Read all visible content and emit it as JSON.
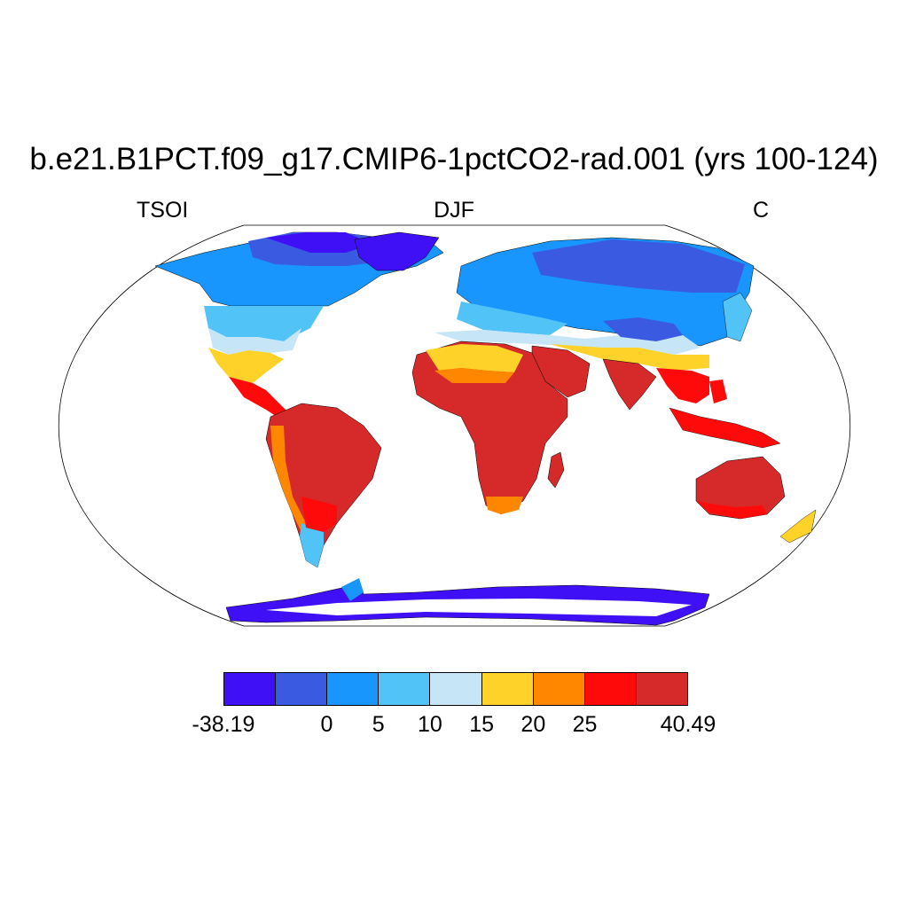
{
  "title": "b.e21.B1PCT.f09_g17.CMIP6-1pctCO2-rad.001 (yrs 100-124)",
  "left_label": "TSOI",
  "center_label": "DJF",
  "right_label": "C",
  "colorbar": {
    "colors": [
      "#3f10f5",
      "#3b5ae2",
      "#1896fd",
      "#52c3f6",
      "#c6e6f7",
      "#ffd22a",
      "#ff8700",
      "#ff0a0a",
      "#d62a2a"
    ],
    "labels": [
      "-38.19",
      "0",
      "5",
      "10",
      "15",
      "20",
      "25",
      "40.49"
    ]
  },
  "map": {
    "projection": "Robinson",
    "variable": "TSOI",
    "season": "DJF",
    "units": "C"
  }
}
